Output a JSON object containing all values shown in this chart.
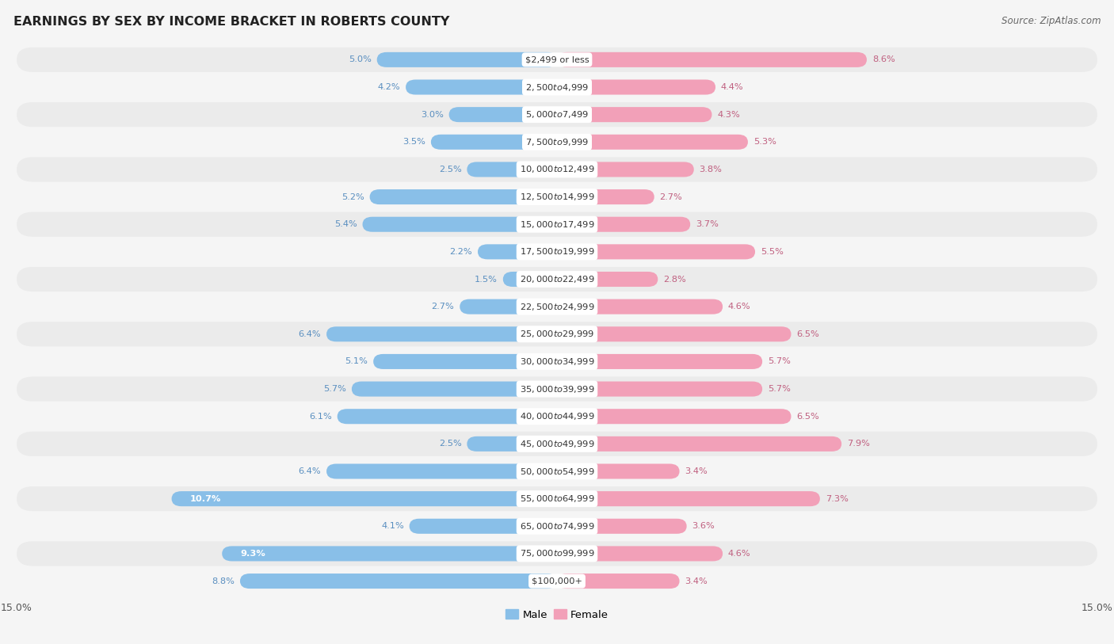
{
  "title": "EARNINGS BY SEX BY INCOME BRACKET IN ROBERTS COUNTY",
  "source": "Source: ZipAtlas.com",
  "categories": [
    "$2,499 or less",
    "$2,500 to $4,999",
    "$5,000 to $7,499",
    "$7,500 to $9,999",
    "$10,000 to $12,499",
    "$12,500 to $14,999",
    "$15,000 to $17,499",
    "$17,500 to $19,999",
    "$20,000 to $22,499",
    "$22,500 to $24,999",
    "$25,000 to $29,999",
    "$30,000 to $34,999",
    "$35,000 to $39,999",
    "$40,000 to $44,999",
    "$45,000 to $49,999",
    "$50,000 to $54,999",
    "$55,000 to $64,999",
    "$65,000 to $74,999",
    "$75,000 to $99,999",
    "$100,000+"
  ],
  "male_values": [
    5.0,
    4.2,
    3.0,
    3.5,
    2.5,
    5.2,
    5.4,
    2.2,
    1.5,
    2.7,
    6.4,
    5.1,
    5.7,
    6.1,
    2.5,
    6.4,
    10.7,
    4.1,
    9.3,
    8.8
  ],
  "female_values": [
    8.6,
    4.4,
    4.3,
    5.3,
    3.8,
    2.7,
    3.7,
    5.5,
    2.8,
    4.6,
    6.5,
    5.7,
    5.7,
    6.5,
    7.9,
    3.4,
    7.3,
    3.6,
    4.6,
    3.4
  ],
  "male_color": "#89bfe8",
  "female_color": "#f2a0b8",
  "male_label_color": "#5a8fc0",
  "female_label_color": "#c06080",
  "row_color_odd": "#ebebeb",
  "row_color_even": "#f5f5f5",
  "background_color": "#f5f5f5",
  "xlim": 15.0,
  "bar_height": 0.55
}
